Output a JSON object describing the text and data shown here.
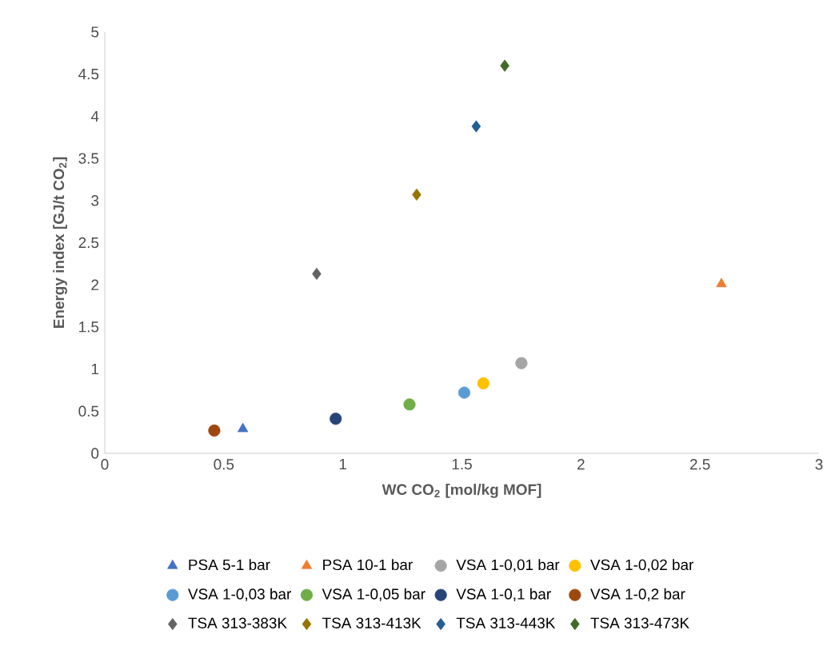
{
  "chart_data": {
    "type": "scatter",
    "xlabel": "WC CO$_{2}$ [mol/kg MOF]",
    "ylabel": "Energy index [GJ/t CO$_{2}$]",
    "xlim": [
      0,
      3
    ],
    "ylim": [
      0,
      5
    ],
    "xticks": [
      0,
      0.5,
      1,
      1.5,
      2,
      2.5,
      3
    ],
    "yticks": [
      0,
      0.5,
      1,
      1.5,
      2,
      2.5,
      3,
      3.5,
      4,
      4.5,
      5
    ],
    "grid": false,
    "legend": "bottom",
    "series": [
      {
        "name": "PSA 5-1 bar",
        "color": "#4472c4",
        "marker": "triangle",
        "x": [
          0.58
        ],
        "values": [
          0.29
        ]
      },
      {
        "name": "PSA 10-1 bar",
        "color": "#ed7d31",
        "marker": "triangle",
        "x": [
          2.59
        ],
        "values": [
          2.01
        ]
      },
      {
        "name": "VSA 1-0,01 bar",
        "color": "#a5a5a5",
        "marker": "circle",
        "x": [
          1.75
        ],
        "values": [
          1.07
        ]
      },
      {
        "name": "VSA 1-0,02 bar",
        "color": "#ffc000",
        "marker": "circle",
        "x": [
          1.59
        ],
        "values": [
          0.83
        ]
      },
      {
        "name": "VSA 1-0,03 bar",
        "color": "#5b9bd5",
        "marker": "circle",
        "x": [
          1.51
        ],
        "values": [
          0.72
        ]
      },
      {
        "name": "VSA 1-0,05 bar",
        "color": "#70ad47",
        "marker": "circle",
        "x": [
          1.28
        ],
        "values": [
          0.58
        ]
      },
      {
        "name": "VSA 1-0,1 bar",
        "color": "#264478",
        "marker": "circle",
        "x": [
          0.97
        ],
        "values": [
          0.41
        ]
      },
      {
        "name": "VSA 1-0,2 bar",
        "color": "#9e480e",
        "marker": "circle",
        "x": [
          0.46
        ],
        "values": [
          0.27
        ]
      },
      {
        "name": "TSA 313-383K",
        "color": "#636363",
        "marker": "diamond",
        "x": [
          0.89
        ],
        "values": [
          2.13
        ]
      },
      {
        "name": "TSA 313-413K",
        "color": "#997300",
        "marker": "diamond",
        "x": [
          1.31
        ],
        "values": [
          3.07
        ]
      },
      {
        "name": "TSA 313-443K",
        "color": "#255e91",
        "marker": "diamond",
        "x": [
          1.56
        ],
        "values": [
          3.88
        ]
      },
      {
        "name": "TSA 313-473K",
        "color": "#43682b",
        "marker": "diamond",
        "x": [
          1.68
        ],
        "values": [
          4.6
        ]
      }
    ]
  }
}
